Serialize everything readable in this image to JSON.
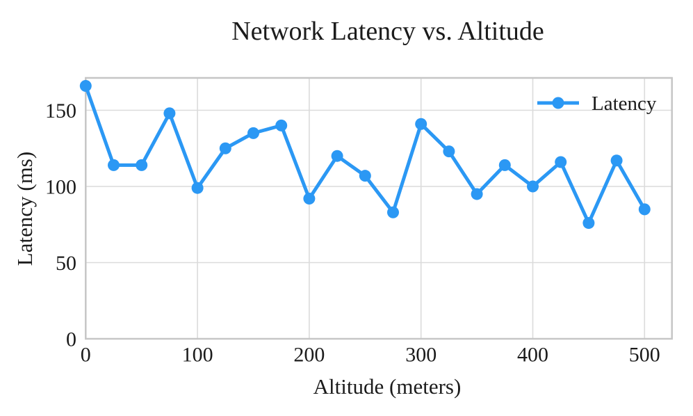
{
  "chart_data": {
    "type": "line",
    "title": "Network Latency vs. Altitude",
    "xlabel": "Altitude (meters)",
    "ylabel": "Latency (ms)",
    "x": [
      0,
      25,
      50,
      75,
      100,
      125,
      150,
      175,
      200,
      225,
      250,
      275,
      300,
      325,
      350,
      375,
      400,
      425,
      450,
      475,
      500
    ],
    "series": [
      {
        "name": "Latency",
        "values": [
          166,
          114,
          114,
          148,
          99,
          125,
          135,
          140,
          92,
          120,
          107,
          83,
          141,
          123,
          95,
          114,
          100,
          116,
          76,
          117,
          85
        ]
      }
    ],
    "xticks": [
      0,
      100,
      200,
      300,
      400,
      500
    ],
    "yticks": [
      0,
      50,
      100,
      150
    ],
    "xlim": [
      0,
      525
    ],
    "ylim": [
      0,
      171
    ],
    "grid": true,
    "legend_position": "top-right-inside",
    "colors": {
      "line": "#2b98f4",
      "marker": "#2b98f4",
      "gridline": "#dbdbdb",
      "spine": "#c6c6c6",
      "text": "#1b1b1b",
      "background": "#ffffff"
    },
    "marker_style": "circle"
  }
}
